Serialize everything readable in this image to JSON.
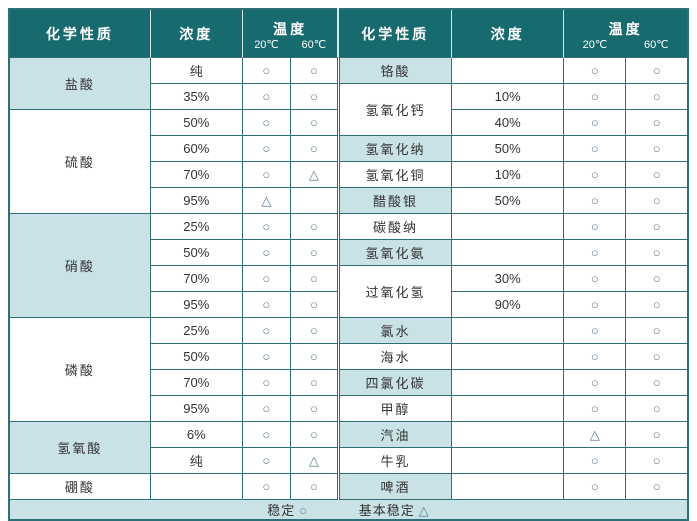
{
  "header": {
    "chemical": "化学性质",
    "concentration": "浓度",
    "temperature": "温度",
    "temp_20": "20℃",
    "temp_60": "60℃"
  },
  "legend": {
    "stable_label": "稳定",
    "stable_symbol": "○",
    "basic_label": "基本稳定",
    "basic_symbol": "△"
  },
  "colors": {
    "header_bg": "#176b6f",
    "tint_bg": "#c9e2e5",
    "border": "#2f6f78",
    "symbol": "#5d7f90",
    "header_text": "#ffffff",
    "body_text": "#333333"
  },
  "left": {
    "groups": [
      {
        "name": "盐酸",
        "tint": true,
        "rows": [
          [
            "纯",
            "○",
            "○"
          ],
          [
            "35%",
            "○",
            "○"
          ]
        ]
      },
      {
        "name": "硫酸",
        "tint": false,
        "rows": [
          [
            "50%",
            "○",
            "○"
          ],
          [
            "60%",
            "○",
            "○"
          ],
          [
            "70%",
            "○",
            "△"
          ],
          [
            "95%",
            "△",
            ""
          ]
        ]
      },
      {
        "name": "硝酸",
        "tint": true,
        "rows": [
          [
            "25%",
            "○",
            "○"
          ],
          [
            "50%",
            "○",
            "○"
          ],
          [
            "70%",
            "○",
            "○"
          ],
          [
            "95%",
            "○",
            "○"
          ]
        ]
      },
      {
        "name": "磷酸",
        "tint": false,
        "rows": [
          [
            "25%",
            "○",
            "○"
          ],
          [
            "50%",
            "○",
            "○"
          ],
          [
            "70%",
            "○",
            "○"
          ],
          [
            "95%",
            "○",
            "○"
          ]
        ]
      },
      {
        "name": "氢氧酸",
        "tint": true,
        "rows": [
          [
            "6%",
            "○",
            "○"
          ],
          [
            "纯",
            "○",
            "△"
          ]
        ]
      },
      {
        "name": "硼酸",
        "tint": false,
        "rows": [
          [
            "",
            "○",
            "○"
          ]
        ]
      }
    ]
  },
  "right": {
    "groups": [
      {
        "name": "铬酸",
        "tint": true,
        "rows": [
          [
            "",
            "○",
            "○"
          ]
        ]
      },
      {
        "name": "氢氧化钙",
        "tint": false,
        "rows": [
          [
            "10%",
            "○",
            "○"
          ],
          [
            "40%",
            "○",
            "○"
          ]
        ]
      },
      {
        "name": "氢氧化纳",
        "tint": true,
        "rows": [
          [
            "50%",
            "○",
            "○"
          ]
        ]
      },
      {
        "name": "氢氧化铜",
        "tint": false,
        "rows": [
          [
            "10%",
            "○",
            "○"
          ]
        ]
      },
      {
        "name": "醋酸银",
        "tint": true,
        "rows": [
          [
            "50%",
            "○",
            "○"
          ]
        ]
      },
      {
        "name": "碳酸纳",
        "tint": false,
        "rows": [
          [
            "",
            "○",
            "○"
          ]
        ]
      },
      {
        "name": "氢氧化氨",
        "tint": true,
        "rows": [
          [
            "",
            "○",
            "○"
          ]
        ]
      },
      {
        "name": "过氧化氢",
        "tint": false,
        "rows": [
          [
            "30%",
            "○",
            "○"
          ],
          [
            "90%",
            "○",
            "○"
          ]
        ]
      },
      {
        "name": "氯水",
        "tint": true,
        "rows": [
          [
            "",
            "○",
            "○"
          ]
        ]
      },
      {
        "name": "海水",
        "tint": false,
        "rows": [
          [
            "",
            "○",
            "○"
          ]
        ]
      },
      {
        "name": "四氯化碳",
        "tint": true,
        "rows": [
          [
            "",
            "○",
            "○"
          ]
        ]
      },
      {
        "name": "甲醇",
        "tint": false,
        "rows": [
          [
            "",
            "○",
            "○"
          ]
        ]
      },
      {
        "name": "汽油",
        "tint": true,
        "rows": [
          [
            "",
            "△",
            "○"
          ]
        ]
      },
      {
        "name": "牛乳",
        "tint": false,
        "rows": [
          [
            "",
            "○",
            "○"
          ]
        ]
      },
      {
        "name": "啤酒",
        "tint": true,
        "rows": [
          [
            "",
            "○",
            "○"
          ]
        ]
      }
    ]
  }
}
